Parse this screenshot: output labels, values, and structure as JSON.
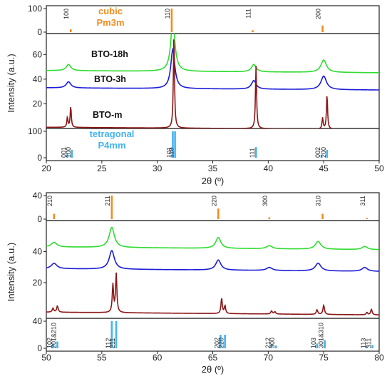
{
  "chart_data": [
    {
      "type": "line",
      "xlabel": "2θ (º)",
      "ylabel": "Intensity (a.u.)",
      "xlim": [
        20,
        50
      ],
      "x_ticks": [
        20,
        25,
        30,
        35,
        40,
        45,
        50
      ],
      "grid": false,
      "reference_top": {
        "title": [
          "cubic",
          "Pm3m"
        ],
        "color": "#f28c1e",
        "ylim": [
          0,
          100
        ],
        "y_ticks": [
          0,
          100
        ],
        "peaks": [
          {
            "label": "100",
            "x": 22.2,
            "intensity": 12
          },
          {
            "label": "110",
            "x": 31.3,
            "intensity": 100
          },
          {
            "label": "111",
            "x": 38.6,
            "intensity": 8
          },
          {
            "label": "200",
            "x": 44.9,
            "intensity": 28
          }
        ]
      },
      "main": {
        "ylim": [
          0,
          77
        ],
        "y_ticks": [
          20,
          40,
          60
        ],
        "series": [
          {
            "name": "BTO-18h",
            "color": "#2fdc2f",
            "baseline": 47,
            "peaks": [
              {
                "x": 22.0,
                "h": 5,
                "w": 0.25
              },
              {
                "x": 31.4,
                "h": 42,
                "w": 0.22
              },
              {
                "x": 38.7,
                "h": 6,
                "w": 0.25
              },
              {
                "x": 45.0,
                "h": 10,
                "w": 0.3
              }
            ]
          },
          {
            "name": "BTO-3h",
            "color": "#1c1cd6",
            "baseline": 33,
            "peaks": [
              {
                "x": 22.0,
                "h": 5,
                "w": 0.25
              },
              {
                "x": 31.4,
                "h": 32,
                "w": 0.22
              },
              {
                "x": 38.7,
                "h": 7,
                "w": 0.25
              },
              {
                "x": 45.0,
                "h": 11,
                "w": 0.3
              }
            ]
          },
          {
            "name": "BTO-m",
            "color": "#8b1717",
            "baseline": 1,
            "peaks": [
              {
                "x": 21.9,
                "h": 8,
                "w": 0.06
              },
              {
                "x": 22.2,
                "h": 17,
                "w": 0.06
              },
              {
                "x": 31.5,
                "h": 76,
                "w": 0.06
              },
              {
                "x": 38.9,
                "h": 51,
                "w": 0.06
              },
              {
                "x": 44.9,
                "h": 9,
                "w": 0.06
              },
              {
                "x": 45.3,
                "h": 28,
                "w": 0.06
              }
            ]
          }
        ]
      },
      "reference_bottom": {
        "title": [
          "tetragonal",
          "P4mm"
        ],
        "color": "#45b3f0",
        "ylim": [
          0,
          100
        ],
        "y_ticks": [
          0,
          100
        ],
        "peaks": [
          {
            "label": "001",
            "x": 21.9,
            "intensity": 15
          },
          {
            "label": "100",
            "x": 22.3,
            "intensity": 30
          },
          {
            "label": "101",
            "x": 31.4,
            "intensity": 100
          },
          {
            "label": "110",
            "x": 31.6,
            "intensity": 100
          },
          {
            "label": "111",
            "x": 38.9,
            "intensity": 40
          },
          {
            "label": "002",
            "x": 44.8,
            "intensity": 10
          },
          {
            "label": "200",
            "x": 45.3,
            "intensity": 30
          }
        ]
      }
    },
    {
      "type": "line",
      "xlabel": "2θ (º)",
      "ylabel": "Intensity (a.u.)",
      "xlim": [
        50,
        80
      ],
      "x_ticks": [
        50,
        55,
        60,
        65,
        70,
        75,
        80
      ],
      "grid": false,
      "reference_top": {
        "color": "#f28c1e",
        "ylim": [
          0,
          40
        ],
        "y_ticks": [
          0,
          40
        ],
        "peaks": [
          {
            "label": "210",
            "x": 50.7,
            "intensity": 9
          },
          {
            "label": "211",
            "x": 55.9,
            "intensity": 40
          },
          {
            "label": "220",
            "x": 65.5,
            "intensity": 18
          },
          {
            "label": "300",
            "x": 70.1,
            "intensity": 3
          },
          {
            "label": "310",
            "x": 74.9,
            "intensity": 9
          },
          {
            "label": "311",
            "x": 78.9,
            "intensity": 2
          }
        ]
      },
      "main": {
        "ylim": [
          -3,
          60
        ],
        "y_ticks": [
          20,
          40
        ],
        "series": [
          {
            "name": "BTO-18h",
            "color": "#2fdc2f",
            "baseline": 43,
            "peaks": [
              {
                "x": 50.7,
                "h": 3,
                "w": 0.3
              },
              {
                "x": 55.9,
                "h": 13,
                "w": 0.28
              },
              {
                "x": 65.5,
                "h": 7,
                "w": 0.28
              },
              {
                "x": 70.1,
                "h": 2,
                "w": 0.3
              },
              {
                "x": 74.5,
                "h": 5,
                "w": 0.3
              },
              {
                "x": 78.7,
                "h": 2,
                "w": 0.3
              }
            ]
          },
          {
            "name": "BTO-3h",
            "color": "#1c1cd6",
            "baseline": 29,
            "peaks": [
              {
                "x": 50.7,
                "h": 3.5,
                "w": 0.3
              },
              {
                "x": 55.9,
                "h": 12,
                "w": 0.28
              },
              {
                "x": 65.5,
                "h": 6.5,
                "w": 0.28
              },
              {
                "x": 70.1,
                "h": 2,
                "w": 0.3
              },
              {
                "x": 74.5,
                "h": 5,
                "w": 0.3
              },
              {
                "x": 78.7,
                "h": 2.5,
                "w": 0.3
              }
            ]
          },
          {
            "name": "BTO-m",
            "color": "#8b1717",
            "baseline": 1,
            "peaks": [
              {
                "x": 50.6,
                "h": 2.5,
                "w": 0.08
              },
              {
                "x": 51.0,
                "h": 4,
                "w": 0.08
              },
              {
                "x": 56.0,
                "h": 18,
                "w": 0.07
              },
              {
                "x": 56.3,
                "h": 25,
                "w": 0.07
              },
              {
                "x": 65.8,
                "h": 10,
                "w": 0.07
              },
              {
                "x": 66.1,
                "h": 5,
                "w": 0.07
              },
              {
                "x": 70.3,
                "h": 2,
                "w": 0.08
              },
              {
                "x": 70.6,
                "h": 1.5,
                "w": 0.08
              },
              {
                "x": 74.4,
                "h": 3,
                "w": 0.08
              },
              {
                "x": 75.0,
                "h": 6,
                "w": 0.08
              },
              {
                "x": 78.9,
                "h": 1.5,
                "w": 0.08
              },
              {
                "x": 79.3,
                "h": 3.5,
                "w": 0.08
              }
            ]
          }
        ]
      },
      "reference_bottom": {
        "color": "#45b3f0",
        "ylim": [
          0,
          40
        ],
        "y_ticks": [
          0,
          40
        ],
        "peaks": [
          {
            "label": "102",
            "x": 50.6,
            "intensity": 7
          },
          {
            "label": "201&210",
            "x": 51.0,
            "intensity": 10
          },
          {
            "label": "112",
            "x": 55.9,
            "intensity": 40
          },
          {
            "label": "211",
            "x": 56.3,
            "intensity": 40
          },
          {
            "label": "202",
            "x": 65.7,
            "intensity": 20
          },
          {
            "label": "220",
            "x": 66.1,
            "intensity": 20
          },
          {
            "label": "212",
            "x": 70.3,
            "intensity": 6
          },
          {
            "label": "300",
            "x": 70.7,
            "intensity": 4
          },
          {
            "label": "103",
            "x": 74.4,
            "intensity": 7
          },
          {
            "label": "301&310",
            "x": 75.1,
            "intensity": 12
          },
          {
            "label": "113",
            "x": 78.9,
            "intensity": 3
          },
          {
            "label": "311",
            "x": 79.4,
            "intensity": 5
          }
        ]
      }
    }
  ]
}
